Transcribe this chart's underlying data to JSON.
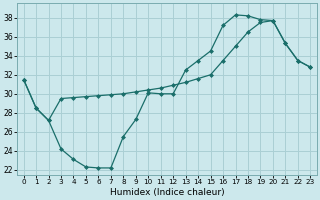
{
  "xlabel": "Humidex (Indice chaleur)",
  "bg_color": "#cce8ec",
  "grid_color": "#aacfd4",
  "line_color": "#1a6e6a",
  "ylim": [
    21.5,
    39.5
  ],
  "yticks": [
    22,
    24,
    26,
    28,
    30,
    32,
    34,
    36,
    38
  ],
  "xlim": [
    -0.5,
    23.5
  ],
  "xticks": [
    0,
    1,
    2,
    3,
    4,
    5,
    6,
    7,
    8,
    9,
    10,
    11,
    12,
    13,
    14,
    15,
    16,
    17,
    18,
    19,
    20,
    21,
    22,
    23
  ],
  "line1_x": [
    0,
    1,
    2,
    3,
    4,
    5,
    6,
    7,
    8,
    9,
    10,
    11,
    12,
    13,
    14,
    15,
    16,
    17,
    18,
    19,
    20,
    21,
    22,
    23
  ],
  "line1_y": [
    31.5,
    28.5,
    27.2,
    24.2,
    23.1,
    22.3,
    22.2,
    22.2,
    25.5,
    27.3,
    30.1,
    30.0,
    30.0,
    32.5,
    33.5,
    34.5,
    37.2,
    38.3,
    38.2,
    37.8,
    37.7,
    35.3,
    33.5,
    32.8
  ],
  "line2_x": [
    0,
    1,
    2,
    3,
    4,
    5,
    6,
    7,
    8,
    9,
    10,
    11,
    12,
    13,
    14,
    15,
    16,
    17,
    18,
    19,
    20,
    21,
    22,
    23
  ],
  "line2_y": [
    31.5,
    28.5,
    27.2,
    29.5,
    29.6,
    29.7,
    29.8,
    29.9,
    30.0,
    30.2,
    30.4,
    30.6,
    30.9,
    31.2,
    31.6,
    32.0,
    33.5,
    35.0,
    36.5,
    37.5,
    37.7,
    35.3,
    33.5,
    32.8
  ]
}
